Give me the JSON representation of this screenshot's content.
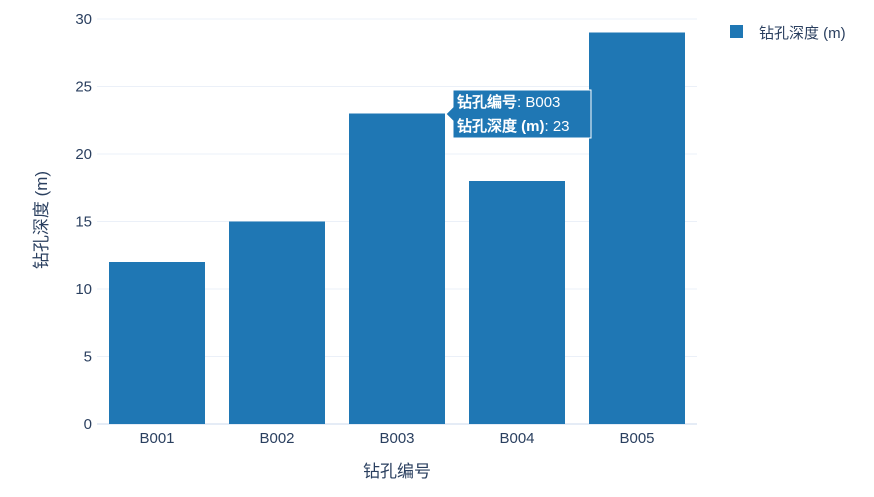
{
  "chart_data": {
    "type": "bar",
    "categories": [
      "B001",
      "B002",
      "B003",
      "B004",
      "B005"
    ],
    "series": [
      {
        "name": "钻孔深度 (m)",
        "values": [
          12,
          15,
          23,
          18,
          29
        ]
      }
    ],
    "xlabel": "钻孔编号",
    "ylabel": "钻孔深度 (m)",
    "ylim": [
      0,
      30
    ],
    "yticks": [
      0,
      5,
      10,
      15,
      20,
      25,
      30
    ],
    "grid": true,
    "legend_placement": "top-right",
    "bar_color": "#1f77b4",
    "hover_tooltip": {
      "category": "B003",
      "x_label": "钻孔编号",
      "x_value": "B003",
      "y_label": "钻孔深度 (m)",
      "y_value": "23"
    }
  }
}
